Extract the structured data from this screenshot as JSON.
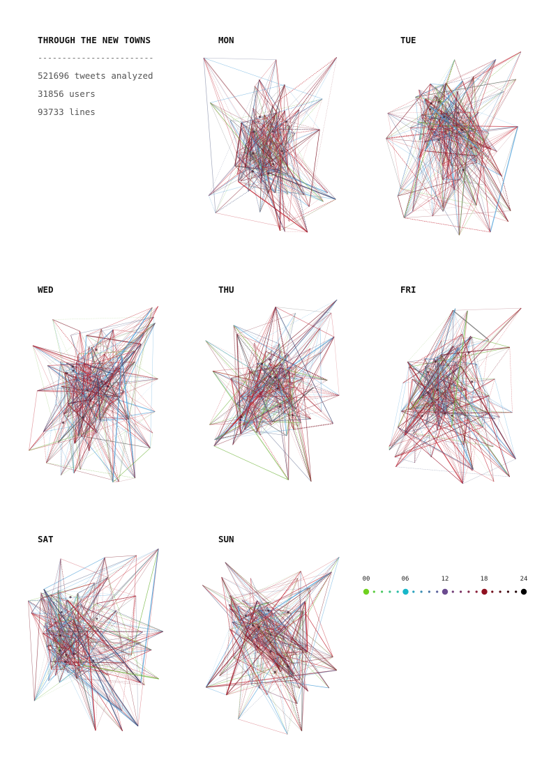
{
  "header": {
    "title": "THROUGH THE NEW TOWNS",
    "rule": "------------------------",
    "stats": [
      "521696 tweets analyzed",
      "31856 users",
      "93733 lines"
    ]
  },
  "days": [
    {
      "label": "MON",
      "seed": 11
    },
    {
      "label": "TUE",
      "seed": 23
    },
    {
      "label": "WED",
      "seed": 37
    },
    {
      "label": "THU",
      "seed": 41
    },
    {
      "label": "FRI",
      "seed": 53
    },
    {
      "label": "SAT",
      "seed": 67
    },
    {
      "label": "SUN",
      "seed": 79
    }
  ],
  "legend": {
    "ticks": [
      "00",
      "06",
      "12",
      "18",
      "24"
    ],
    "anchor_colors": [
      "#6fd11f",
      "#17b7c9",
      "#6b4b8f",
      "#8f1020",
      "#000000"
    ],
    "dots_between": 4
  },
  "line_colors": {
    "blue": "#4a9fd8",
    "red": "#c0202e",
    "darkred": "#7a1020",
    "navy": "#33406e",
    "green": "#6fb43a",
    "gray": "#666666"
  }
}
